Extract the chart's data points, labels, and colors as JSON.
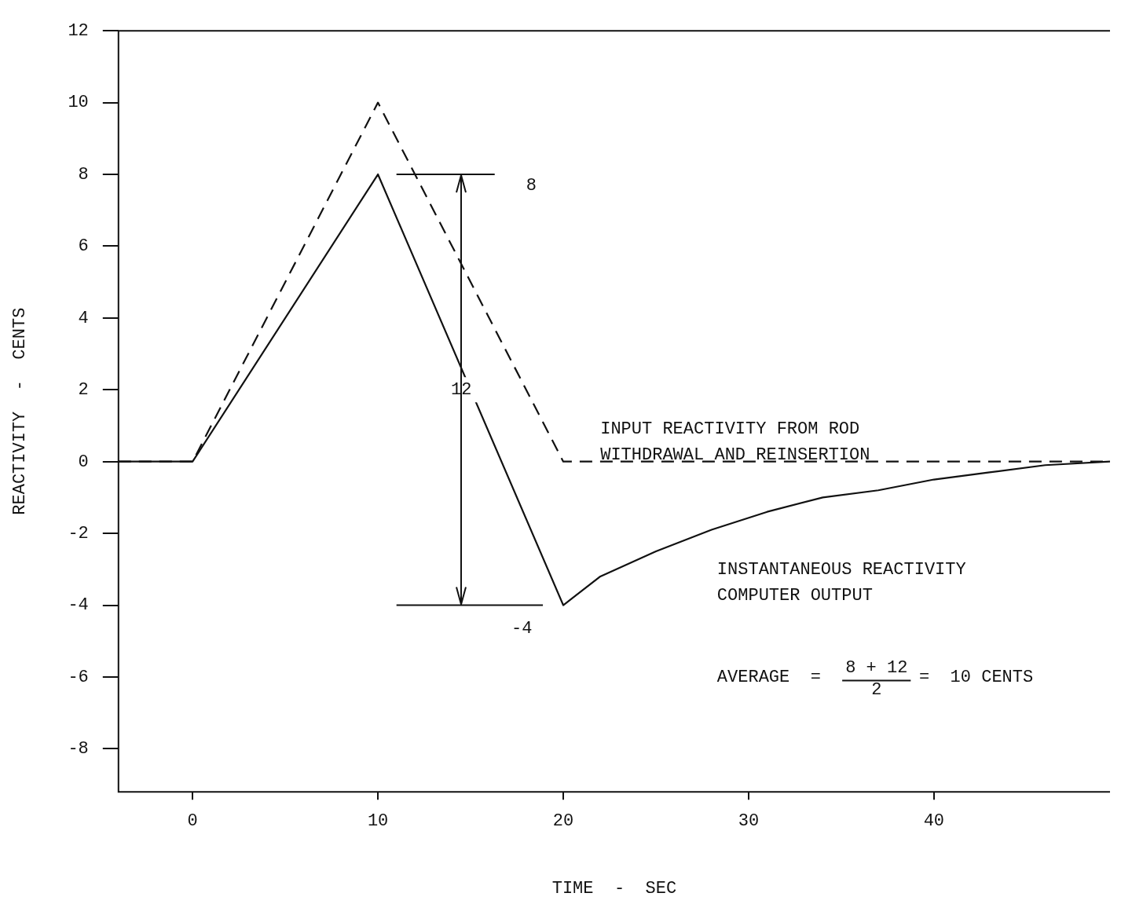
{
  "chart_data": {
    "type": "line",
    "xlabel": "TIME  -  SEC",
    "ylabel": "REACTIVITY  -  CENTS",
    "xlim": [
      -4,
      49.5
    ],
    "xticks": [
      0,
      10,
      20,
      30,
      40
    ],
    "ylim": [
      -9.2,
      12
    ],
    "yticks": [
      -8,
      -6,
      -4,
      -2,
      0,
      2,
      4,
      6,
      8,
      10,
      12
    ],
    "grid": false,
    "legend": false,
    "marker": "none",
    "series": [
      {
        "name": "INPUT REACTIVITY FROM ROD WITHDRAWAL AND REINSERTION",
        "color": "#111111",
        "line_style": "dashed",
        "x": [
          -4,
          0,
          10,
          20,
          49.5
        ],
        "values": [
          0,
          0,
          10,
          0,
          0
        ]
      },
      {
        "name": "INSTANTANEOUS REACTIVITY COMPUTER OUTPUT",
        "color": "#111111",
        "line_style": "solid",
        "x": [
          -4,
          0,
          10,
          20,
          22,
          25,
          28,
          31,
          34,
          37,
          40,
          43,
          46,
          49.5
        ],
        "values": [
          0,
          0,
          8,
          -4,
          -3.2,
          -2.5,
          -1.9,
          -1.4,
          -1.0,
          -0.8,
          -0.5,
          -0.3,
          -0.1,
          0
        ]
      }
    ],
    "ref_lines": [
      {
        "axis": "y",
        "value": 8,
        "label": "8"
      },
      {
        "axis": "y",
        "value": -4,
        "label": "-4"
      }
    ],
    "annotations": [
      "12",
      "AVERAGE  =",
      "8 + 12",
      "2",
      "=  10 CENTS"
    ]
  }
}
